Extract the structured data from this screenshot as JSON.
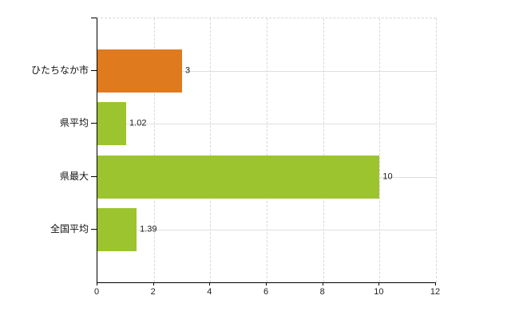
{
  "chart_data": {
    "type": "bar",
    "orientation": "horizontal",
    "title": "",
    "xlabel": "",
    "ylabel": "",
    "categories": [
      "ひたちなか市",
      "県平均",
      "県最大",
      "全国平均"
    ],
    "values": [
      3,
      1.02,
      10,
      1.39
    ],
    "value_labels": [
      "3",
      "1.02",
      "10",
      "1.39"
    ],
    "bar_colors": [
      "#e07a1e",
      "#9cc42f",
      "#9cc42f",
      "#9cc42f"
    ],
    "xlim": [
      0,
      12
    ],
    "x_ticks": [
      "0",
      "2",
      "4",
      "6",
      "8",
      "10",
      "12"
    ],
    "grid": true,
    "legend": null,
    "colors": {
      "accent_orange": "#e07a1e",
      "accent_green": "#9cc42f",
      "grid_vertical": "#d8d8d8",
      "grid_horizontal": "#dbe2da",
      "axis": "#000000",
      "text": "#1a1a1a",
      "background": "#ffffff"
    }
  }
}
